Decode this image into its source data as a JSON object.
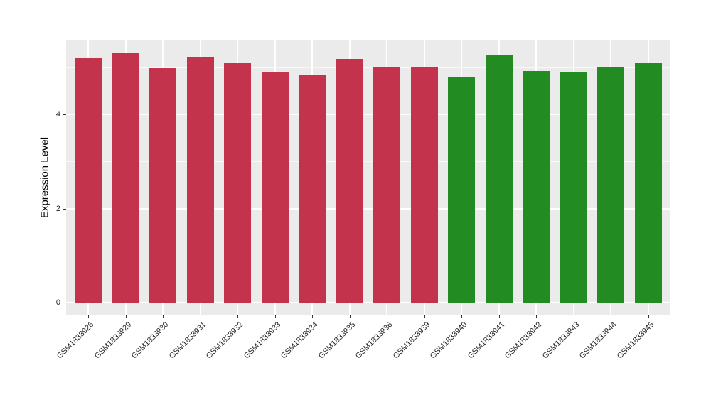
{
  "figure": {
    "background": "#FFFFFF"
  },
  "chart_data": {
    "type": "bar",
    "title": "",
    "xlabel": "",
    "ylabel": "Expression Level",
    "legend": "none",
    "grid": true,
    "panel_background": "#EBEBEB",
    "gridline_color": "#FFFFFF",
    "axis_text_color": "#262626",
    "tick_color": "#333333",
    "ylim": [
      0,
      5.59
    ],
    "yticks": [
      0,
      2,
      4
    ],
    "yticks_minor": [
      1,
      3,
      5
    ],
    "group_colors": {
      "group1": "#C3344C",
      "group2": "#228B22"
    },
    "categories": [
      "GSM1833926",
      "GSM1833929",
      "GSM1833930",
      "GSM1833931",
      "GSM1833932",
      "GSM1833933",
      "GSM1833934",
      "GSM1833935",
      "GSM1833936",
      "GSM1833939",
      "GSM1833940",
      "GSM1833941",
      "GSM1833942",
      "GSM1833943",
      "GSM1833944",
      "GSM1833945"
    ],
    "values": [
      5.21,
      5.31,
      4.99,
      5.23,
      5.11,
      4.9,
      4.84,
      5.18,
      5.0,
      5.02,
      4.81,
      5.27,
      4.93,
      4.91,
      5.02,
      5.09
    ],
    "bar_colors": [
      "#C3344C",
      "#C3344C",
      "#C3344C",
      "#C3344C",
      "#C3344C",
      "#C3344C",
      "#C3344C",
      "#C3344C",
      "#C3344C",
      "#C3344C",
      "#228B22",
      "#228B22",
      "#228B22",
      "#228B22",
      "#228B22",
      "#228B22"
    ]
  }
}
